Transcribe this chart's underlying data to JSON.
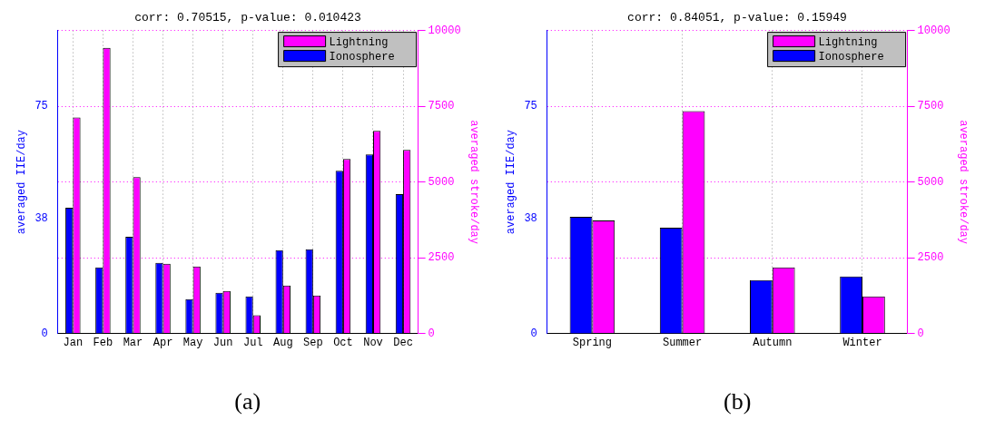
{
  "chart_data": [
    {
      "type": "bar",
      "title": "corr: 0.70515, p-value: 0.010423",
      "categories": [
        "Jan",
        "Feb",
        "Mar",
        "Apr",
        "May",
        "Jun",
        "Jul",
        "Aug",
        "Sep",
        "Oct",
        "Nov",
        "Dec"
      ],
      "series": [
        {
          "name": "Ionosphere",
          "color": "#0000ff",
          "axis": "y",
          "values": [
            41.5,
            21.8,
            31.9,
            23.3,
            11.3,
            13.4,
            12.2,
            27.5,
            27.8,
            53.7,
            59.1,
            46.0
          ]
        },
        {
          "name": "Lightning",
          "color": "#ff00ff",
          "axis": "y2",
          "values": [
            7130,
            9430,
            5160,
            2300,
            2210,
            1400,
            600,
            1580,
            1250,
            5760,
            6690,
            6060
          ]
        }
      ],
      "ylim": [
        0,
        100
      ],
      "yticks": [
        0,
        38,
        75
      ],
      "y2lim": [
        0,
        10000
      ],
      "y2ticks": [
        0,
        2500,
        5000,
        7500,
        10000
      ],
      "ylabel": "averaged IIE/day",
      "y2label": "averaged stroke/day",
      "grid": true,
      "legend": "top right",
      "annotations": [
        "(a)"
      ]
    },
    {
      "type": "bar",
      "title": "corr: 0.84051, p-value: 0.15949",
      "categories": [
        "Spring",
        "Summer",
        "Autumn",
        "Winter"
      ],
      "series": [
        {
          "name": "Ionosphere",
          "color": "#0000ff",
          "axis": "y",
          "values": [
            38.5,
            34.9,
            17.6,
            18.8
          ]
        },
        {
          "name": "Lightning",
          "color": "#ff00ff",
          "axis": "y2",
          "values": [
            3730,
            7340,
            2180,
            1220
          ]
        }
      ],
      "ylim": [
        0,
        100
      ],
      "yticks": [
        0,
        38,
        75
      ],
      "y2lim": [
        0,
        10000
      ],
      "y2ticks": [
        0,
        2500,
        5000,
        7500,
        10000
      ],
      "ylabel": "averaged IIE/day",
      "y2label": "averaged stroke/day",
      "grid": true,
      "legend": "top right",
      "annotations": [
        "(b)"
      ]
    }
  ]
}
